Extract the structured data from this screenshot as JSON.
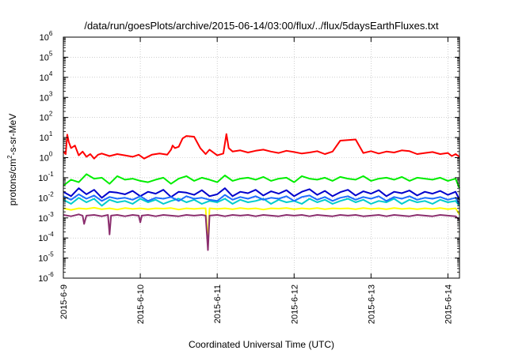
{
  "chart_data": {
    "type": "line",
    "title": "/data/run/goesPlots/archive/2015-06-14/03:00/flux/../flux/5daysEarthFluxes.txt",
    "xlabel": "Coordinated Universal Time (UTC)",
    "ylabel": {
      "prefix": "protons/cm",
      "sup": "2",
      "suffix": "-s-sr-MeV"
    },
    "yscale": "log",
    "ylim": [
      1e-06,
      1000000.0
    ],
    "y_tick_exponents": [
      -6,
      -5,
      -4,
      -3,
      -2,
      -1,
      0,
      1,
      2,
      3,
      4,
      5,
      6
    ],
    "x_unit": "days",
    "xlim": [
      0,
      5.15
    ],
    "x_ticks": [
      {
        "x": 0,
        "label": "2015-6-9"
      },
      {
        "x": 1,
        "label": "2015-6-10"
      },
      {
        "x": 2,
        "label": "2015-6-11"
      },
      {
        "x": 3,
        "label": "2015-6-12"
      },
      {
        "x": 4,
        "label": "2015-6-13"
      },
      {
        "x": 5,
        "label": "2015-6-14"
      }
    ],
    "grid": true,
    "series": [
      {
        "color": "#ff0000",
        "x": [
          0,
          0.03,
          0.05,
          0.07,
          0.1,
          0.15,
          0.2,
          0.25,
          0.3,
          0.35,
          0.4,
          0.45,
          0.5,
          0.6,
          0.7,
          0.8,
          0.9,
          0.98,
          1.05,
          1.15,
          1.25,
          1.35,
          1.4,
          1.42,
          1.45,
          1.5,
          1.55,
          1.6,
          1.7,
          1.78,
          1.85,
          1.9,
          2.0,
          2.08,
          2.12,
          2.15,
          2.2,
          2.3,
          2.4,
          2.5,
          2.6,
          2.7,
          2.8,
          2.9,
          3.0,
          3.1,
          3.2,
          3.3,
          3.4,
          3.5,
          3.6,
          3.7,
          3.8,
          3.9,
          4.0,
          4.1,
          4.2,
          4.3,
          4.4,
          4.5,
          4.6,
          4.7,
          4.8,
          4.9,
          5.0,
          5.05,
          5.1,
          5.15
        ],
        "values": [
          2,
          1.5,
          14,
          6,
          3,
          4,
          1.3,
          2,
          1.1,
          1.5,
          0.9,
          1.4,
          1.6,
          1.2,
          1.5,
          1.3,
          1.1,
          1.4,
          0.9,
          1.4,
          1.6,
          1.4,
          2.5,
          4,
          3,
          3.5,
          9,
          12,
          11,
          3,
          1.5,
          2.5,
          1.3,
          1.6,
          15,
          3,
          2,
          2.3,
          1.8,
          2.2,
          2.5,
          2,
          1.7,
          2.2,
          1.9,
          1.6,
          1.8,
          2.1,
          1.5,
          2,
          7,
          7.5,
          8,
          1.7,
          2.1,
          1.6,
          2,
          1.8,
          2.3,
          2.1,
          1.5,
          1.7,
          1.9,
          1.5,
          1.7,
          1.2,
          1.5,
          1.1
        ]
      },
      {
        "color": "#00ee00",
        "x": [
          0,
          0.1,
          0.2,
          0.3,
          0.4,
          0.5,
          0.6,
          0.7,
          0.8,
          0.9,
          1.0,
          1.1,
          1.2,
          1.3,
          1.4,
          1.5,
          1.6,
          1.7,
          1.8,
          1.9,
          2.0,
          2.1,
          2.2,
          2.3,
          2.4,
          2.5,
          2.6,
          2.7,
          2.8,
          2.9,
          3.0,
          3.1,
          3.2,
          3.3,
          3.4,
          3.5,
          3.6,
          3.7,
          3.8,
          3.9,
          4.0,
          4.1,
          4.2,
          4.3,
          4.4,
          4.5,
          4.6,
          4.7,
          4.8,
          4.9,
          5.0,
          5.1,
          5.15
        ],
        "values": [
          0.04,
          0.08,
          0.06,
          0.15,
          0.09,
          0.1,
          0.05,
          0.12,
          0.08,
          0.09,
          0.07,
          0.06,
          0.08,
          0.1,
          0.05,
          0.09,
          0.12,
          0.07,
          0.1,
          0.08,
          0.06,
          0.13,
          0.07,
          0.09,
          0.1,
          0.08,
          0.11,
          0.07,
          0.09,
          0.1,
          0.06,
          0.12,
          0.09,
          0.08,
          0.1,
          0.07,
          0.11,
          0.09,
          0.08,
          0.12,
          0.07,
          0.09,
          0.1,
          0.08,
          0.11,
          0.07,
          0.1,
          0.09,
          0.08,
          0.1,
          0.07,
          0.09,
          0.03
        ]
      },
      {
        "color": "#00cccc",
        "x": [
          0,
          0.1,
          0.2,
          0.3,
          0.4,
          0.5,
          0.6,
          0.7,
          0.8,
          0.9,
          1.0,
          1.1,
          1.2,
          1.3,
          1.4,
          1.5,
          1.6,
          1.7,
          1.8,
          1.9,
          2.0,
          2.1,
          2.2,
          2.3,
          2.4,
          2.5,
          2.6,
          2.7,
          2.8,
          2.9,
          3.0,
          3.1,
          3.2,
          3.3,
          3.4,
          3.5,
          3.6,
          3.7,
          3.8,
          3.9,
          4.0,
          4.1,
          4.2,
          4.3,
          4.4,
          4.5,
          4.6,
          4.7,
          4.8,
          4.9,
          5.0,
          5.1,
          5.15
        ],
        "values": [
          0.008,
          0.005,
          0.01,
          0.006,
          0.009,
          0.004,
          0.008,
          0.006,
          0.007,
          0.005,
          0.009,
          0.006,
          0.008,
          0.005,
          0.007,
          0.009,
          0.006,
          0.008,
          0.005,
          0.007,
          0.006,
          0.009,
          0.005,
          0.008,
          0.006,
          0.007,
          0.009,
          0.005,
          0.008,
          0.006,
          0.007,
          0.005,
          0.009,
          0.006,
          0.008,
          0.005,
          0.007,
          0.009,
          0.006,
          0.008,
          0.005,
          0.007,
          0.006,
          0.009,
          0.005,
          0.008,
          0.006,
          0.007,
          0.005,
          0.008,
          0.006,
          0.007,
          0.004
        ]
      },
      {
        "color": "#0000cc",
        "x": [
          0,
          0.1,
          0.2,
          0.3,
          0.4,
          0.5,
          0.6,
          0.7,
          0.8,
          0.9,
          1.0,
          1.1,
          1.2,
          1.3,
          1.4,
          1.5,
          1.6,
          1.7,
          1.8,
          1.9,
          2.0,
          2.1,
          2.2,
          2.3,
          2.4,
          2.5,
          2.6,
          2.7,
          2.8,
          2.9,
          3.0,
          3.1,
          3.2,
          3.3,
          3.4,
          3.5,
          3.6,
          3.7,
          3.8,
          3.9,
          4.0,
          4.1,
          4.2,
          4.3,
          4.4,
          4.5,
          4.6,
          4.7,
          4.8,
          4.9,
          5.0,
          5.1,
          5.15
        ],
        "values": [
          0.02,
          0.012,
          0.03,
          0.015,
          0.025,
          0.01,
          0.02,
          0.018,
          0.015,
          0.022,
          0.012,
          0.02,
          0.016,
          0.025,
          0.011,
          0.02,
          0.018,
          0.014,
          0.024,
          0.012,
          0.015,
          0.03,
          0.012,
          0.02,
          0.017,
          0.025,
          0.013,
          0.021,
          0.016,
          0.024,
          0.012,
          0.02,
          0.027,
          0.014,
          0.022,
          0.012,
          0.019,
          0.025,
          0.013,
          0.021,
          0.016,
          0.024,
          0.012,
          0.02,
          0.017,
          0.023,
          0.013,
          0.02,
          0.016,
          0.022,
          0.014,
          0.02,
          0.008
        ]
      },
      {
        "color": "#1e6eff",
        "x": [
          0,
          0.1,
          0.2,
          0.3,
          0.4,
          0.5,
          0.6,
          0.7,
          0.8,
          0.9,
          1.0,
          1.1,
          1.2,
          1.3,
          1.4,
          1.5,
          1.6,
          1.7,
          1.8,
          1.9,
          2.0,
          2.1,
          2.2,
          2.3,
          2.4,
          2.5,
          2.6,
          2.7,
          2.8,
          2.9,
          3.0,
          3.1,
          3.2,
          3.3,
          3.4,
          3.5,
          3.6,
          3.7,
          3.8,
          3.9,
          4.0,
          4.1,
          4.2,
          4.3,
          4.4,
          4.5,
          4.6,
          4.7,
          4.8,
          4.9,
          5.0,
          5.1,
          5.15
        ],
        "values": [
          0.012,
          0.008,
          0.015,
          0.009,
          0.013,
          0.007,
          0.011,
          0.009,
          0.01,
          0.008,
          0.012,
          0.007,
          0.01,
          0.009,
          0.011,
          0.007,
          0.012,
          0.009,
          0.01,
          0.008,
          0.007,
          0.014,
          0.008,
          0.011,
          0.009,
          0.012,
          0.008,
          0.01,
          0.009,
          0.012,
          0.007,
          0.011,
          0.013,
          0.008,
          0.011,
          0.007,
          0.01,
          0.012,
          0.008,
          0.011,
          0.009,
          0.012,
          0.007,
          0.011,
          0.009,
          0.012,
          0.008,
          0.01,
          0.009,
          0.011,
          0.008,
          0.01,
          0.005
        ]
      },
      {
        "color": "#ffff00",
        "x": [
          0,
          0.1,
          0.2,
          0.3,
          0.4,
          0.5,
          0.6,
          0.7,
          0.8,
          0.9,
          1.0,
          1.1,
          1.2,
          1.3,
          1.4,
          1.5,
          1.6,
          1.7,
          1.8,
          1.85,
          1.88,
          1.9,
          2.0,
          2.1,
          2.2,
          2.3,
          2.4,
          2.5,
          2.6,
          2.7,
          2.8,
          2.9,
          3.0,
          3.1,
          3.2,
          3.3,
          3.4,
          3.5,
          3.6,
          3.7,
          3.8,
          3.9,
          4.0,
          4.1,
          4.2,
          4.3,
          4.4,
          4.5,
          4.6,
          4.7,
          4.8,
          4.9,
          5.0,
          5.1,
          5.15
        ],
        "values": [
          0.003,
          0.0025,
          0.003,
          0.0028,
          0.0032,
          0.0027,
          0.003,
          0.0026,
          0.0031,
          0.0028,
          0.003,
          0.0027,
          0.003,
          0.0029,
          0.0031,
          0.0026,
          0.003,
          0.0028,
          0.003,
          0.003,
          5e-05,
          0.003,
          0.0028,
          0.003,
          0.0027,
          0.0031,
          0.0028,
          0.003,
          0.0026,
          0.003,
          0.0029,
          0.0031,
          0.0027,
          0.003,
          0.0028,
          0.0031,
          0.0027,
          0.003,
          0.0029,
          0.003,
          0.0027,
          0.0031,
          0.0028,
          0.003,
          0.0027,
          0.0031,
          0.0028,
          0.003,
          0.0027,
          0.003,
          0.0028,
          0.0031,
          0.0027,
          0.003,
          0.0015
        ]
      },
      {
        "color": "#8b2e6e",
        "x": [
          0,
          0.1,
          0.2,
          0.25,
          0.27,
          0.3,
          0.4,
          0.5,
          0.58,
          0.6,
          0.62,
          0.7,
          0.8,
          0.9,
          0.98,
          1.0,
          1.02,
          1.1,
          1.2,
          1.3,
          1.4,
          1.5,
          1.6,
          1.7,
          1.8,
          1.85,
          1.88,
          1.9,
          2.0,
          2.1,
          2.2,
          2.3,
          2.4,
          2.5,
          2.6,
          2.7,
          2.8,
          2.9,
          3.0,
          3.1,
          3.2,
          3.3,
          3.4,
          3.5,
          3.6,
          3.7,
          3.8,
          3.9,
          4.0,
          4.1,
          4.2,
          4.3,
          4.4,
          4.5,
          4.6,
          4.7,
          4.8,
          4.9,
          5.0,
          5.1,
          5.15
        ],
        "values": [
          0.0014,
          0.0012,
          0.0015,
          0.0013,
          0.0005,
          0.0013,
          0.0014,
          0.0012,
          0.0014,
          0.00015,
          0.0013,
          0.0014,
          0.0012,
          0.0014,
          0.0013,
          0.0006,
          0.0013,
          0.0014,
          0.0012,
          0.0014,
          0.0013,
          0.0012,
          0.0014,
          0.0013,
          0.0014,
          0.0013,
          2.5e-05,
          0.0013,
          0.0014,
          0.0012,
          0.0014,
          0.0013,
          0.0014,
          0.0012,
          0.0014,
          0.0013,
          0.0012,
          0.0014,
          0.0013,
          0.0014,
          0.0012,
          0.0014,
          0.0013,
          0.0012,
          0.0014,
          0.0013,
          0.0014,
          0.0012,
          0.0013,
          0.0014,
          0.0012,
          0.0014,
          0.0013,
          0.0012,
          0.0014,
          0.0013,
          0.0012,
          0.0014,
          0.0013,
          0.0012,
          0.0008
        ]
      }
    ]
  }
}
